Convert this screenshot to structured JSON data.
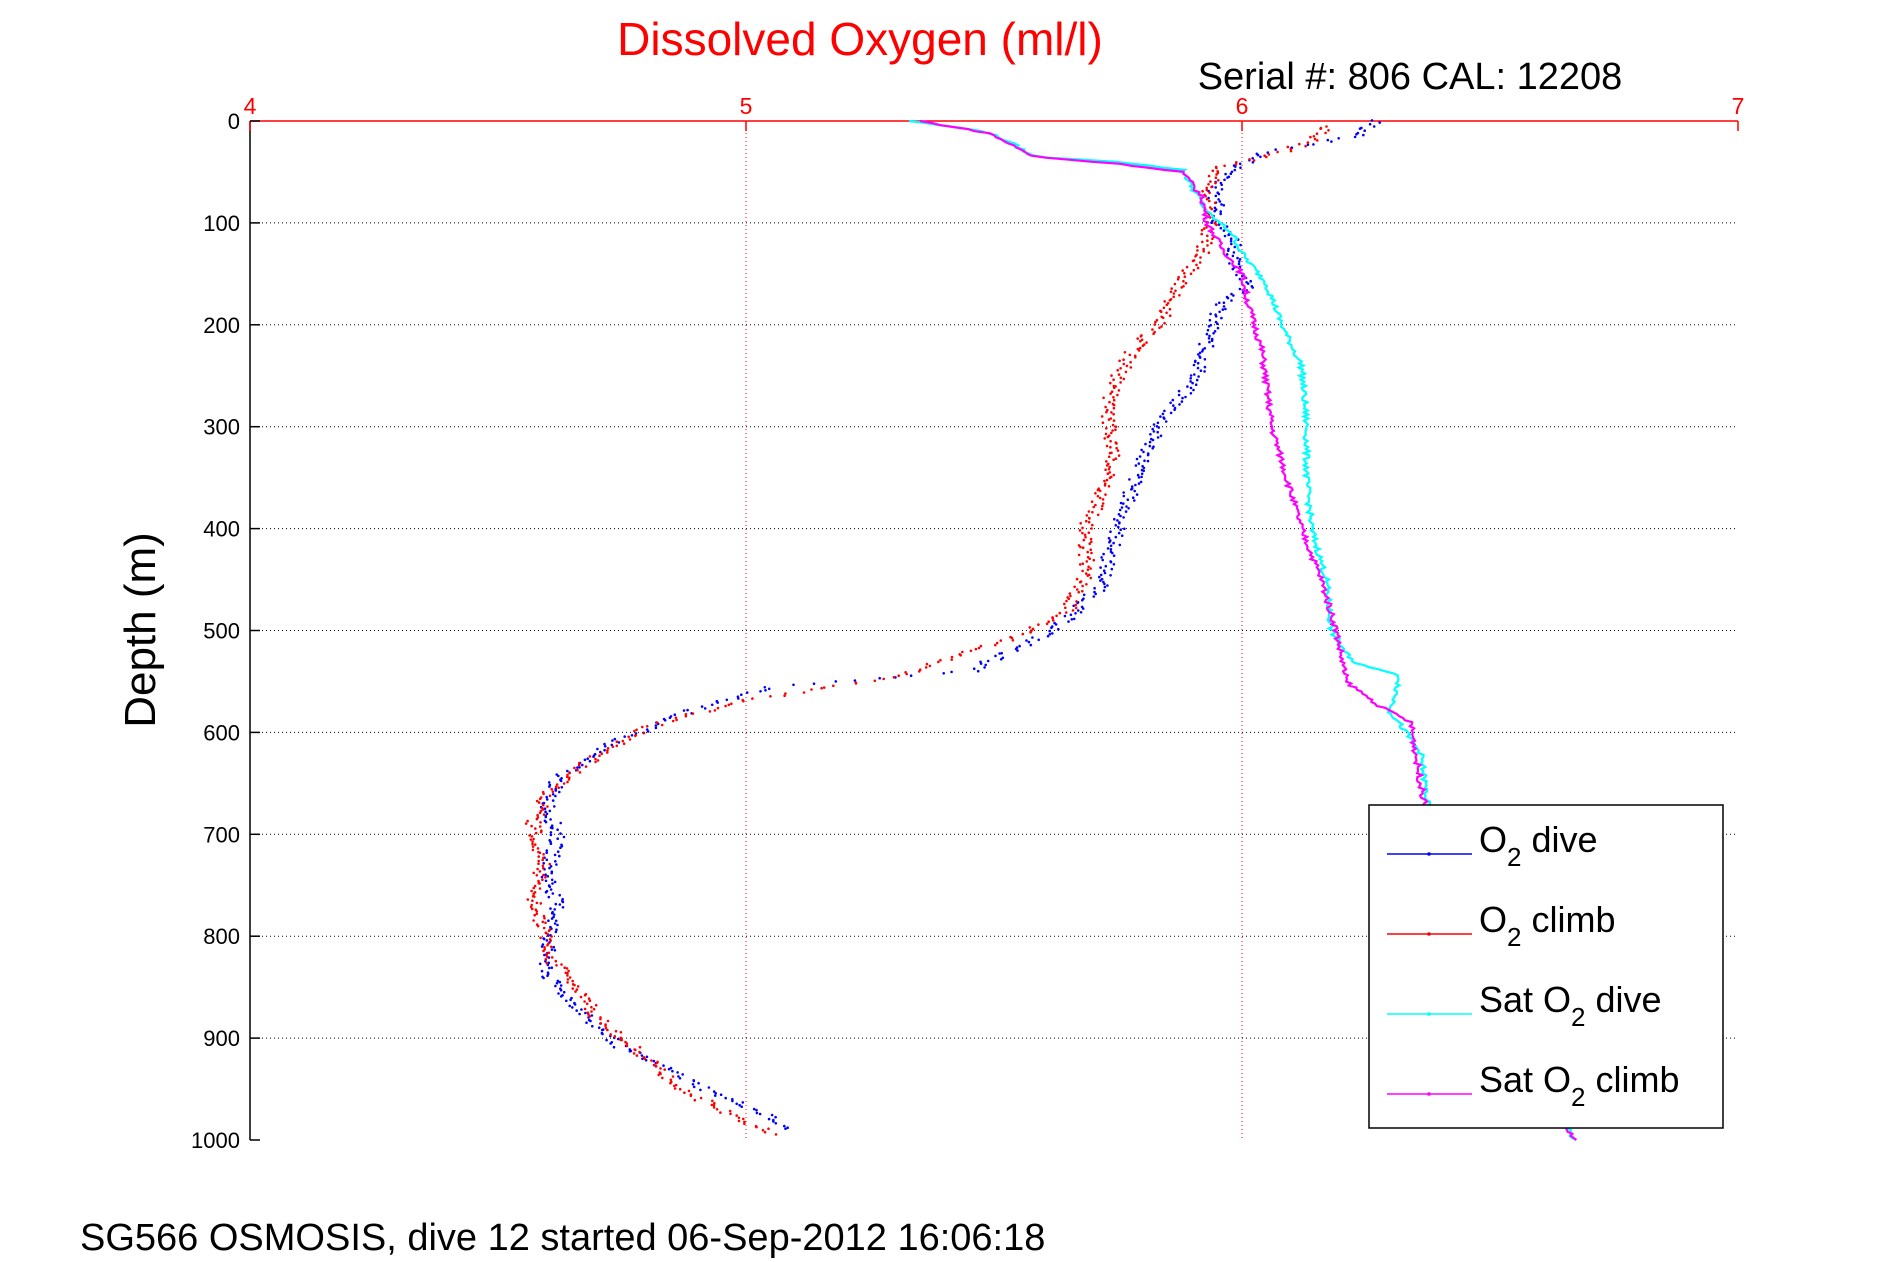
{
  "chart_data": {
    "type": "line",
    "title": "Dissolved Oxygen (ml/l)",
    "annotation": "Serial #: 806  CAL: 12208",
    "footer": "SG566 OSMOSIS, dive 12 started 06-Sep-2012 16:06:18",
    "xlabel": "",
    "ylabel": "Depth (m)",
    "xlim": [
      4,
      7
    ],
    "ylim": [
      0,
      1000
    ],
    "y_reversed": true,
    "x_axis_position": "top",
    "x_ticks": [
      4,
      5,
      6,
      7
    ],
    "x_tick_labels": [
      "4",
      "5",
      "6",
      "7"
    ],
    "y_ticks": [
      0,
      100,
      200,
      300,
      400,
      500,
      600,
      700,
      800,
      900,
      1000
    ],
    "y_tick_labels": [
      "0",
      "100",
      "200",
      "300",
      "400",
      "500",
      "600",
      "700",
      "800",
      "900",
      "1000"
    ],
    "grid": true,
    "legend_position": "bottom-right",
    "series": [
      {
        "name": "O2 dive",
        "legend_main": "O",
        "legend_sub": "2",
        "legend_rest": " dive",
        "color": "#0000ff",
        "style": "dots",
        "points": [
          [
            6.27,
            0
          ],
          [
            6.23,
            15
          ],
          [
            6.12,
            25
          ],
          [
            6.05,
            30
          ],
          [
            5.99,
            45
          ],
          [
            5.94,
            70
          ],
          [
            5.96,
            85
          ],
          [
            5.95,
            100
          ],
          [
            5.99,
            120
          ],
          [
            5.98,
            140
          ],
          [
            6.02,
            160
          ],
          [
            5.95,
            185
          ],
          [
            5.93,
            215
          ],
          [
            5.91,
            250
          ],
          [
            5.87,
            275
          ],
          [
            5.83,
            300
          ],
          [
            5.79,
            345
          ],
          [
            5.76,
            385
          ],
          [
            5.73,
            430
          ],
          [
            5.72,
            455
          ],
          [
            5.62,
            500
          ],
          [
            5.45,
            540
          ],
          [
            5.05,
            555
          ],
          [
            4.88,
            580
          ],
          [
            4.73,
            610
          ],
          [
            4.62,
            645
          ],
          [
            4.6,
            675
          ],
          [
            4.62,
            700
          ],
          [
            4.6,
            740
          ],
          [
            4.62,
            770
          ],
          [
            4.6,
            810
          ],
          [
            4.6,
            840
          ],
          [
            4.66,
            870
          ],
          [
            4.75,
            910
          ],
          [
            4.86,
            935
          ],
          [
            4.94,
            955
          ],
          [
            5.04,
            975
          ],
          [
            5.08,
            990
          ]
        ]
      },
      {
        "name": "O2 climb",
        "legend_main": "O",
        "legend_sub": "2",
        "legend_rest": " climb",
        "color": "#ff0000",
        "style": "dots",
        "points": [
          [
            6.17,
            5
          ],
          [
            6.14,
            20
          ],
          [
            6.05,
            35
          ],
          [
            5.95,
            45
          ],
          [
            5.93,
            70
          ],
          [
            5.94,
            95
          ],
          [
            5.92,
            130
          ],
          [
            5.87,
            165
          ],
          [
            5.83,
            200
          ],
          [
            5.78,
            225
          ],
          [
            5.74,
            260
          ],
          [
            5.73,
            290
          ],
          [
            5.74,
            330
          ],
          [
            5.71,
            375
          ],
          [
            5.68,
            405
          ],
          [
            5.69,
            440
          ],
          [
            5.65,
            480
          ],
          [
            5.55,
            505
          ],
          [
            5.3,
            545
          ],
          [
            4.98,
            570
          ],
          [
            4.8,
            595
          ],
          [
            4.68,
            630
          ],
          [
            4.6,
            660
          ],
          [
            4.57,
            690
          ],
          [
            4.59,
            730
          ],
          [
            4.57,
            760
          ],
          [
            4.59,
            790
          ],
          [
            4.6,
            820
          ],
          [
            4.66,
            850
          ],
          [
            4.7,
            880
          ],
          [
            4.8,
            920
          ],
          [
            4.87,
            950
          ],
          [
            4.97,
            975
          ],
          [
            5.06,
            995
          ]
        ]
      },
      {
        "name": "Sat O2 dive",
        "legend_main": "Sat O",
        "legend_sub": "2",
        "legend_rest": " dive",
        "color": "#00ffff",
        "style": "line",
        "points": [
          [
            5.33,
            0
          ],
          [
            5.48,
            10
          ],
          [
            5.53,
            20
          ],
          [
            5.58,
            35
          ],
          [
            5.75,
            40
          ],
          [
            5.88,
            48
          ],
          [
            5.9,
            65
          ],
          [
            5.93,
            90
          ],
          [
            5.98,
            110
          ],
          [
            6.0,
            130
          ],
          [
            6.05,
            160
          ],
          [
            6.08,
            200
          ],
          [
            6.12,
            240
          ],
          [
            6.13,
            300
          ],
          [
            6.13,
            350
          ],
          [
            6.14,
            400
          ],
          [
            6.17,
            450
          ],
          [
            6.18,
            500
          ],
          [
            6.22,
            530
          ],
          [
            6.32,
            545
          ],
          [
            6.3,
            580
          ],
          [
            6.36,
            620
          ],
          [
            6.37,
            655
          ],
          [
            6.38,
            700
          ],
          [
            6.44,
            780
          ],
          [
            6.52,
            860
          ],
          [
            6.6,
            940
          ],
          [
            6.67,
            1000
          ]
        ]
      },
      {
        "name": "Sat O2 climb",
        "legend_main": "Sat O",
        "legend_sub": "2",
        "legend_rest": " climb",
        "color": "#ff00ff",
        "style": "line",
        "points": [
          [
            5.35,
            0
          ],
          [
            5.49,
            12
          ],
          [
            5.53,
            22
          ],
          [
            5.58,
            35
          ],
          [
            5.75,
            42
          ],
          [
            5.88,
            50
          ],
          [
            5.92,
            75
          ],
          [
            5.93,
            100
          ],
          [
            5.96,
            125
          ],
          [
            6.0,
            150
          ],
          [
            6.01,
            175
          ],
          [
            6.04,
            225
          ],
          [
            6.06,
            300
          ],
          [
            6.09,
            350
          ],
          [
            6.12,
            400
          ],
          [
            6.16,
            450
          ],
          [
            6.19,
            500
          ],
          [
            6.21,
            550
          ],
          [
            6.28,
            575
          ],
          [
            6.34,
            590
          ],
          [
            6.35,
            620
          ],
          [
            6.36,
            650
          ],
          [
            6.38,
            700
          ],
          [
            6.44,
            780
          ],
          [
            6.52,
            860
          ],
          [
            6.6,
            940
          ],
          [
            6.67,
            1000
          ]
        ]
      }
    ]
  }
}
